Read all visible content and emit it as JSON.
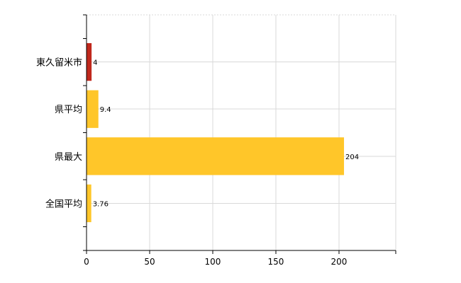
{
  "chart_data": {
    "type": "bar",
    "orientation": "horizontal",
    "categories": [
      "東久留米市",
      "県平均",
      "県最大",
      "全国平均"
    ],
    "values": [
      4,
      9.4,
      204,
      3.76
    ],
    "value_labels": [
      "4",
      "9.4",
      "204",
      "3.76"
    ],
    "bar_colors": [
      "#c0281c",
      "#ffc629",
      "#ffc629",
      "#ffc629"
    ],
    "xticks": [
      0,
      50,
      100,
      150,
      200
    ],
    "xlim": [
      0,
      245
    ],
    "title": "",
    "xlabel": "",
    "ylabel": "",
    "grid": true,
    "legend": "none"
  }
}
